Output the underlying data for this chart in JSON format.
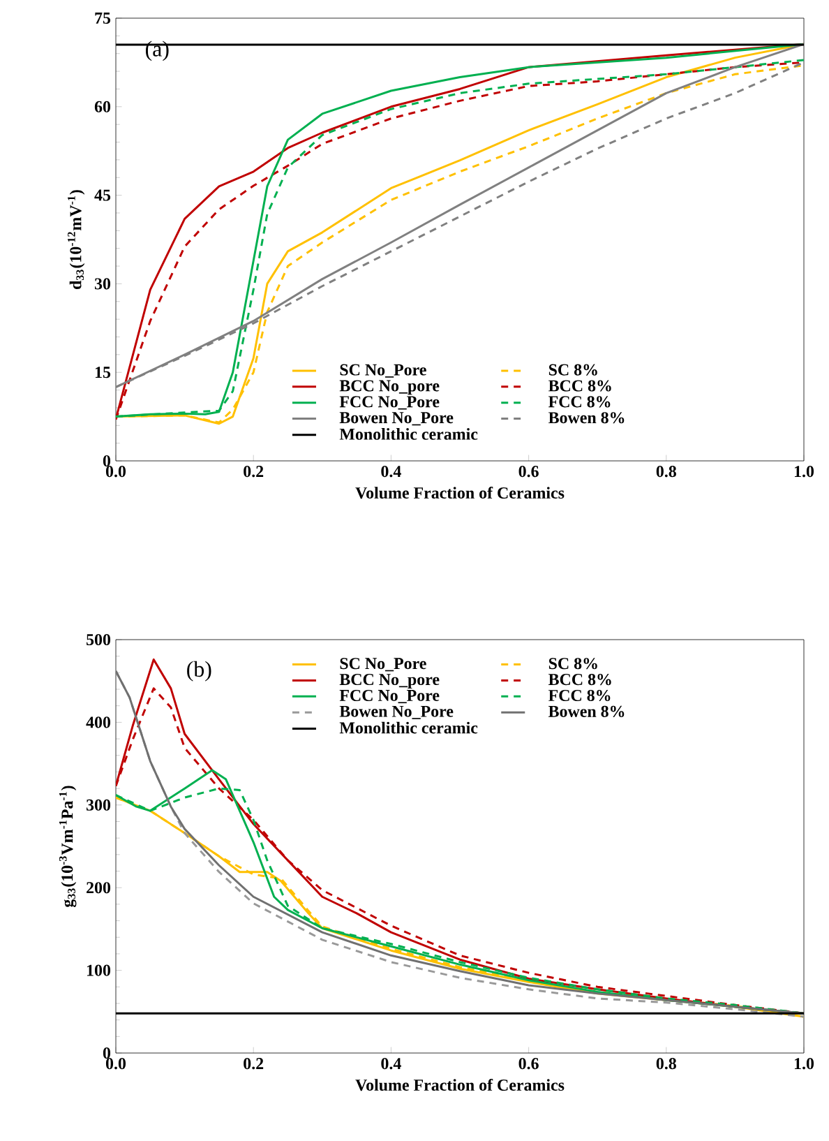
{
  "chart_data": [
    {
      "type": "line",
      "xlabel": "Volume Fraction of Ceramics",
      "ylabel": "d$_{33}$(10$^{-12}$mV$^{-1}$)",
      "annotations": [
        "(a)"
      ],
      "xlim": [
        0,
        1
      ],
      "ylim": [
        0,
        75
      ],
      "xticks": [
        {
          "value": 0,
          "label": "0.0"
        },
        {
          "value": 0.2,
          "label": "0.2"
        },
        {
          "value": 0.4,
          "label": "0.4"
        },
        {
          "value": 0.6,
          "label": "0.6"
        },
        {
          "value": 0.8,
          "label": "0.8"
        },
        {
          "value": 1,
          "label": "1.0"
        }
      ],
      "yticks": [
        0,
        15,
        30,
        45,
        60,
        75
      ],
      "legend": "bottom",
      "grid": false,
      "series": [
        {
          "name": "SC No_Pore",
          "color": "#ffc000",
          "line_style": "solid",
          "x": [
            0,
            0.1,
            0.15,
            0.17,
            0.2,
            0.22,
            0.25,
            0.3,
            0.4,
            0.5,
            0.6,
            0.7,
            0.8,
            0.9,
            1.0
          ],
          "values": [
            7.5,
            7.7,
            6.3,
            7.5,
            17.4,
            30,
            35.5,
            38.7,
            46.2,
            50.9,
            56,
            60.4,
            65,
            68.3,
            70.6
          ]
        },
        {
          "name": "SC 8%",
          "color": "#ffc000",
          "line_style": "dashed",
          "x": [
            0,
            0.1,
            0.15,
            0.17,
            0.2,
            0.22,
            0.25,
            0.3,
            0.4,
            0.5,
            0.6,
            0.7,
            0.8,
            0.9,
            1.0
          ],
          "values": [
            7.5,
            7.7,
            6.5,
            8.7,
            15,
            25.2,
            33,
            37,
            44.2,
            49,
            53.3,
            58,
            62.3,
            65.5,
            67
          ]
        },
        {
          "name": "BCC No_pore",
          "color": "#c00000",
          "line_style": "solid",
          "x": [
            0,
            0.05,
            0.1,
            0.15,
            0.2,
            0.25,
            0.3,
            0.4,
            0.5,
            0.6,
            0.8,
            1.0
          ],
          "values": [
            7.1,
            29,
            41,
            46.5,
            49,
            53,
            55.6,
            60,
            63,
            66.7,
            68.7,
            70.6
          ]
        },
        {
          "name": "BCC 8%",
          "color": "#c00000",
          "line_style": "dashed",
          "x": [
            0,
            0.05,
            0.1,
            0.15,
            0.2,
            0.25,
            0.3,
            0.4,
            0.5,
            0.6,
            0.7,
            0.8,
            0.9,
            1.0
          ],
          "values": [
            7,
            23.7,
            36.3,
            42.6,
            46.6,
            50,
            53.7,
            58,
            61,
            63.5,
            64.3,
            65.5,
            66.7,
            67.5
          ]
        },
        {
          "name": "FCC No_Pore",
          "color": "#00b050",
          "line_style": "solid",
          "x": [
            0,
            0.05,
            0.1,
            0.13,
            0.15,
            0.17,
            0.2,
            0.22,
            0.25,
            0.3,
            0.4,
            0.5,
            0.6,
            0.8,
            1.0
          ],
          "values": [
            7.5,
            7.9,
            8,
            7.9,
            8.3,
            15,
            33.9,
            46.5,
            54.4,
            58.8,
            62.7,
            65,
            66.7,
            68.3,
            70.6
          ]
        },
        {
          "name": "FCC 8%",
          "color": "#00b050",
          "line_style": "dashed",
          "x": [
            0,
            0.1,
            0.15,
            0.17,
            0.2,
            0.22,
            0.25,
            0.3,
            0.4,
            0.5,
            0.6,
            0.8,
            1.0
          ],
          "values": [
            7.5,
            8.2,
            8.5,
            11.8,
            29,
            41.8,
            49.7,
            55.2,
            59.6,
            62.3,
            63.9,
            65.5,
            67.9
          ]
        },
        {
          "name": "Bowen No_Pore",
          "color": "#808080",
          "line_style": "solid",
          "x": [
            0,
            0.1,
            0.2,
            0.3,
            0.4,
            0.5,
            0.6,
            0.7,
            0.8,
            0.9,
            1.0
          ],
          "values": [
            12.5,
            18,
            23.7,
            30.8,
            37,
            43.4,
            49.7,
            56,
            62.3,
            66.7,
            70.6
          ]
        },
        {
          "name": "Bowen 8%",
          "color": "#808080",
          "line_style": "dashed",
          "x": [
            0,
            0.1,
            0.2,
            0.3,
            0.4,
            0.5,
            0.6,
            0.7,
            0.8,
            0.9,
            1.0
          ],
          "values": [
            12.5,
            17.8,
            23.3,
            29.6,
            35.5,
            41.4,
            47.3,
            52.9,
            58,
            62.3,
            67.5
          ]
        },
        {
          "name": "Monolithic ceramic",
          "color": "#000000",
          "line_style": "solid",
          "x": [
            0,
            1.0
          ],
          "values": [
            70.5,
            70.5
          ]
        }
      ]
    },
    {
      "type": "line",
      "xlabel": "Volume Fraction of Ceramics",
      "ylabel": "g$_{33}$(10$^{-3}$Vm$^{-1}$Pa$^{-1}$)",
      "annotations": [
        "(b)"
      ],
      "xlim": [
        0,
        1
      ],
      "ylim": [
        0,
        500
      ],
      "xticks": [
        {
          "value": 0,
          "label": "0.0"
        },
        {
          "value": 0.2,
          "label": "0.2"
        },
        {
          "value": 0.4,
          "label": "0.4"
        },
        {
          "value": 0.6,
          "label": "0.6"
        },
        {
          "value": 0.8,
          "label": "0.8"
        },
        {
          "value": 1,
          "label": "1.0"
        }
      ],
      "yticks": [
        0,
        100,
        200,
        300,
        400,
        500
      ],
      "legend": "top",
      "grid": false,
      "series": [
        {
          "name": "SC No_Pore",
          "color": "#ffc000",
          "line_style": "solid",
          "x": [
            0,
            0.05,
            0.1,
            0.15,
            0.18,
            0.22,
            0.24,
            0.28,
            0.3,
            0.4,
            0.5,
            0.6,
            0.7,
            0.8,
            0.9,
            1.0
          ],
          "values": [
            309,
            293,
            266,
            238,
            219,
            219,
            208,
            169,
            151,
            124,
            102,
            86,
            72,
            64,
            56,
            44
          ]
        },
        {
          "name": "SC 8%",
          "color": "#ffc000",
          "line_style": "dashed",
          "x": [
            0,
            0.05,
            0.1,
            0.15,
            0.2,
            0.24,
            0.28,
            0.3,
            0.4,
            0.5,
            0.6,
            0.7,
            0.8,
            0.9,
            1.0
          ],
          "values": [
            309,
            293,
            266,
            238,
            216,
            211,
            172,
            153,
            126,
            104,
            88,
            74,
            65,
            57,
            44
          ]
        },
        {
          "name": "BCC No_pore",
          "color": "#c00000",
          "line_style": "solid",
          "x": [
            0,
            0.025,
            0.055,
            0.08,
            0.1,
            0.15,
            0.2,
            0.25,
            0.3,
            0.35,
            0.4,
            0.5,
            0.6,
            0.7,
            0.8,
            0.9,
            1.0
          ],
          "values": [
            323,
            397,
            476,
            441,
            386,
            331,
            277,
            233,
            189,
            169,
            146,
            113,
            90,
            77,
            66,
            56,
            48
          ]
        },
        {
          "name": "BCC 8%",
          "color": "#c00000",
          "line_style": "dashed",
          "x": [
            0,
            0.025,
            0.055,
            0.08,
            0.1,
            0.15,
            0.2,
            0.25,
            0.3,
            0.4,
            0.5,
            0.6,
            0.7,
            0.8,
            0.9,
            1.0
          ],
          "values": [
            323,
            380,
            441,
            418,
            369,
            320,
            282,
            233,
            197,
            154,
            118,
            97,
            80,
            69,
            58,
            48
          ]
        },
        {
          "name": "FCC No_Pore",
          "color": "#00b050",
          "line_style": "solid",
          "x": [
            0,
            0.03,
            0.05,
            0.1,
            0.14,
            0.16,
            0.2,
            0.23,
            0.25,
            0.3,
            0.4,
            0.5,
            0.6,
            0.7,
            0.8,
            0.9,
            1.0
          ],
          "values": [
            312,
            298,
            293,
            320,
            342,
            331,
            255,
            189,
            173,
            151,
            129,
            107,
            88,
            74,
            64,
            56,
            48
          ]
        },
        {
          "name": "FCC 8%",
          "color": "#00b050",
          "line_style": "dashed",
          "x": [
            0,
            0.05,
            0.1,
            0.15,
            0.18,
            0.2,
            0.22,
            0.25,
            0.3,
            0.4,
            0.5,
            0.6,
            0.7,
            0.8,
            0.9,
            1.0
          ],
          "values": [
            312,
            293,
            309,
            320,
            318,
            282,
            233,
            178,
            151,
            132,
            110,
            91,
            77,
            66,
            58,
            48
          ]
        },
        {
          "name": "Bowen No_Pore",
          "color": "#999999",
          "line_style": "dashed",
          "x": [
            0,
            0.02,
            0.05,
            0.08,
            0.1,
            0.15,
            0.2,
            0.3,
            0.4,
            0.5,
            0.6,
            0.7,
            0.8,
            0.9,
            1.0
          ],
          "values": [
            462,
            430,
            353,
            298,
            266,
            219,
            181,
            137,
            110,
            91,
            77,
            66,
            61,
            53,
            44
          ]
        },
        {
          "name": "Bowen 8%",
          "color": "#707070",
          "line_style": "solid",
          "x": [
            0,
            0.02,
            0.05,
            0.08,
            0.1,
            0.15,
            0.2,
            0.3,
            0.4,
            0.5,
            0.6,
            0.7,
            0.8,
            0.9,
            1.0
          ],
          "values": [
            462,
            430,
            353,
            298,
            271,
            227,
            189,
            146,
            118,
            99,
            82,
            72,
            64,
            56,
            48
          ]
        },
        {
          "name": "Monolithic ceramic",
          "color": "#000000",
          "line_style": "solid",
          "x": [
            0,
            1.0
          ],
          "values": [
            48,
            48
          ]
        }
      ]
    }
  ]
}
